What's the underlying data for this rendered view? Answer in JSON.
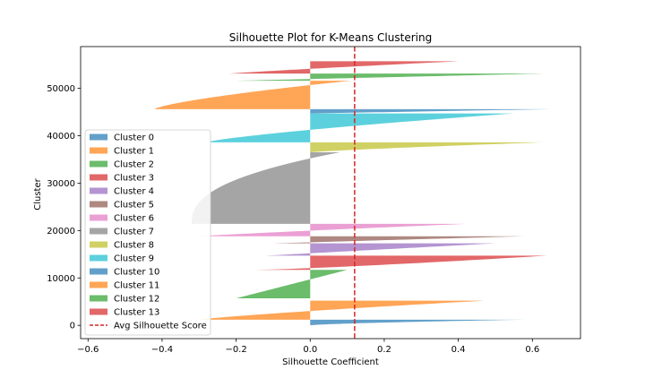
{
  "chart_data": {
    "type": "area",
    "title": "Silhouette Plot for K-Means Clustering",
    "xlabel": "Silhouette Coefficient",
    "ylabel": "Cluster",
    "xlim": [
      -0.62,
      0.73
    ],
    "ylim": [
      -2800,
      58800
    ],
    "x_ticks": [
      -0.6,
      -0.4,
      -0.2,
      0.0,
      0.2,
      0.4,
      0.6
    ],
    "x_tick_labels": [
      "−0.6",
      "−0.4",
      "−0.2",
      "0.0",
      "0.2",
      "0.4",
      "0.6"
    ],
    "y_ticks": [
      0,
      10000,
      20000,
      30000,
      40000,
      50000
    ],
    "y_tick_labels": [
      "0",
      "10000",
      "20000",
      "30000",
      "40000",
      "50000"
    ],
    "grid": false,
    "legend_position": "lower-left",
    "avg_silhouette_score": 0.12,
    "avg_line_color": "#d62728",
    "series": [
      {
        "name": "Cluster 0",
        "color": "#1f77b4",
        "y_start": 0,
        "y_end": 1200,
        "min": 0.0,
        "max": 0.58,
        "shape": 1.5
      },
      {
        "name": "Cluster 1",
        "color": "#ff7f0e",
        "y_start": 1200,
        "y_end": 5200,
        "min": -0.3,
        "max": 0.47,
        "shape": 1.2
      },
      {
        "name": "Cluster 2",
        "color": "#2ca02c",
        "y_start": 5700,
        "y_end": 11700,
        "min": -0.2,
        "max": 0.1,
        "shape": 1.0
      },
      {
        "name": "Cluster 3",
        "color": "#d62728",
        "y_start": 11700,
        "y_end": 14700,
        "min": -0.15,
        "max": 0.64,
        "shape": 0.8
      },
      {
        "name": "Cluster 4",
        "color": "#9467bd",
        "y_start": 14700,
        "y_end": 17300,
        "min": -0.12,
        "max": 0.5,
        "shape": 1.0
      },
      {
        "name": "Cluster 5",
        "color": "#8c564b",
        "y_start": 17300,
        "y_end": 18800,
        "min": -0.1,
        "max": 0.58,
        "shape": 1.0
      },
      {
        "name": "Cluster 6",
        "color": "#e377c2",
        "y_start": 18800,
        "y_end": 21400,
        "min": -0.3,
        "max": 0.42,
        "shape": 1.1
      },
      {
        "name": "Cluster 7",
        "color": "#7f7f7f",
        "y_start": 21400,
        "y_end": 36500,
        "min": -0.32,
        "max": 0.08,
        "shape": 2.5
      },
      {
        "name": "Cluster 8",
        "color": "#bcbd22",
        "y_start": 36500,
        "y_end": 38600,
        "min": 0.0,
        "max": 0.63,
        "shape": 1.2
      },
      {
        "name": "Cluster 9",
        "color": "#17becf",
        "y_start": 38600,
        "y_end": 44700,
        "min": -0.28,
        "max": 0.55,
        "shape": 1.3
      },
      {
        "name": "Cluster 10",
        "color": "#1f77b4",
        "y_start": 44700,
        "y_end": 45600,
        "min": 0.0,
        "max": 0.65,
        "shape": 1.0
      },
      {
        "name": "Cluster 11",
        "color": "#ff7f0e",
        "y_start": 45600,
        "y_end": 51600,
        "min": -0.42,
        "max": 0.11,
        "shape": 1.4
      },
      {
        "name": "Cluster 12",
        "color": "#2ca02c",
        "y_start": 51600,
        "y_end": 53100,
        "min": -0.2,
        "max": 0.63,
        "shape": 1.0
      },
      {
        "name": "Cluster 13",
        "color": "#d62728",
        "y_start": 53100,
        "y_end": 55700,
        "min": -0.22,
        "max": 0.4,
        "shape": 1.1
      }
    ],
    "legend_entries": [
      "Cluster 0",
      "Cluster 1",
      "Cluster 2",
      "Cluster 3",
      "Cluster 4",
      "Cluster 5",
      "Cluster 6",
      "Cluster 7",
      "Cluster 8",
      "Cluster 9",
      "Cluster 10",
      "Cluster 11",
      "Cluster 12",
      "Cluster 13",
      "Avg Silhouette Score"
    ]
  }
}
